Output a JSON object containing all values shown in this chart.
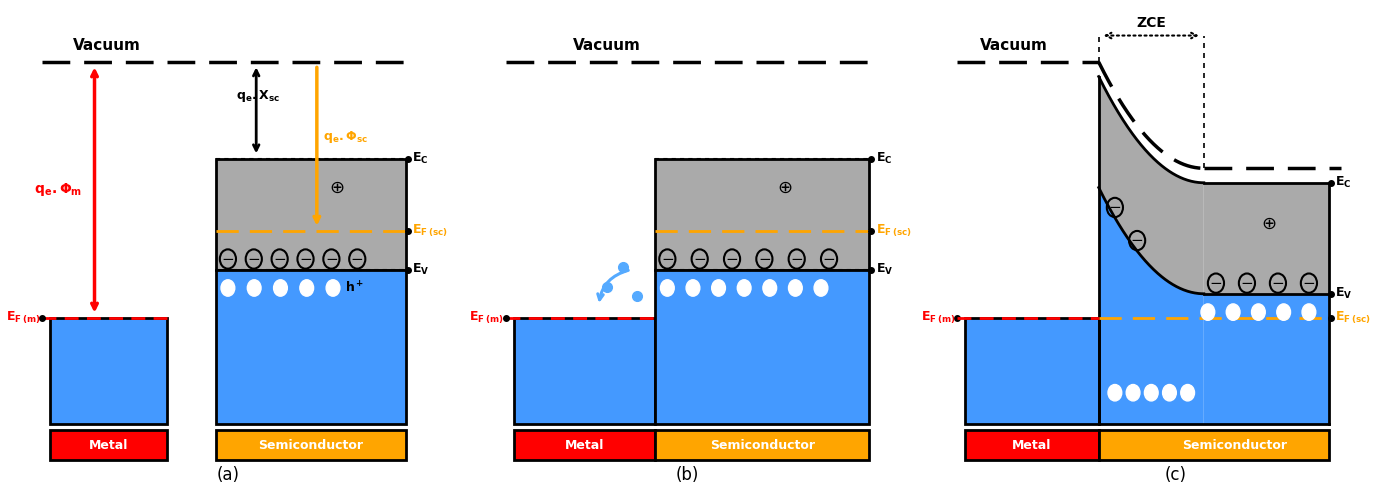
{
  "fig_width": 13.8,
  "fig_height": 4.91,
  "bg_color": "#ffffff",
  "blue_color": "#4499ff",
  "gray_color": "#aaaaaa",
  "red_color": "#ff0000",
  "orange_color": "#ffa500",
  "black_color": "#000000",
  "label_a": "(a)",
  "label_b": "(b)",
  "label_c": "(c)",
  "vacuum_label": "Vacuum",
  "metal_label": "Metal",
  "sc_label": "Semiconductor",
  "ZCE_label": "ZCE"
}
